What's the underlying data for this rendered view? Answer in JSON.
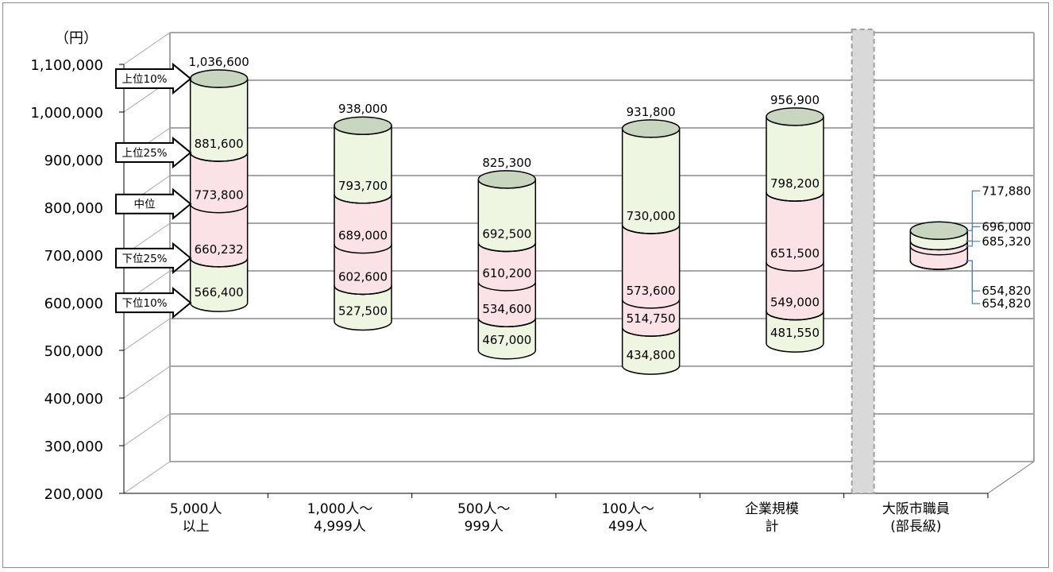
{
  "chart_data": {
    "type": "bar",
    "subtype": "3d-cylinder-floating-percentile",
    "unit_label": "（円）",
    "ylim": [
      200000,
      1100000
    ],
    "yticks": [
      "200,000",
      "300,000",
      "400,000",
      "500,000",
      "600,000",
      "700,000",
      "800,000",
      "900,000",
      "1,000,000",
      "1,100,000"
    ],
    "ytick_values": [
      200000,
      300000,
      400000,
      500000,
      600000,
      700000,
      800000,
      900000,
      1000000,
      1100000
    ],
    "grid": true,
    "categories": [
      {
        "label": [
          "5,000人",
          "以上"
        ]
      },
      {
        "label": [
          "1,000人～",
          "4,999人"
        ]
      },
      {
        "label": [
          "500人～",
          "999人"
        ]
      },
      {
        "label": [
          "100人～",
          "499人"
        ]
      },
      {
        "label": [
          "企業規模",
          "計"
        ]
      },
      {
        "label": [
          "大阪市職員",
          "(部長級)"
        ]
      }
    ],
    "percentile_markers": [
      "上位10%",
      "上位25%",
      "中位",
      "下位25%",
      "下位10%"
    ],
    "series": [
      {
        "name": "上位10%",
        "values": [
          1036600,
          938000,
          825300,
          931800,
          956900,
          717880
        ],
        "labels": [
          "1,036,600",
          "938,000",
          "825,300",
          "931,800",
          "956,900",
          "717,880"
        ]
      },
      {
        "name": "上位25%",
        "values": [
          881600,
          793700,
          692500,
          730000,
          798200,
          696000
        ],
        "labels": [
          "881,600",
          "793,700",
          "692,500",
          "730,000",
          "798,200",
          "696,000"
        ]
      },
      {
        "name": "中位",
        "values": [
          773800,
          689000,
          610200,
          573600,
          651500,
          685320
        ],
        "labels": [
          "773,800",
          "689,000",
          "610,200",
          "573,600",
          "651,500",
          "685,320"
        ]
      },
      {
        "name": "下位25%",
        "values": [
          660232,
          602600,
          534600,
          514750,
          549000,
          654820
        ],
        "labels": [
          "660,232",
          "602,600",
          "534,600",
          "514,750",
          "549,000",
          "654,820"
        ]
      },
      {
        "name": "下位10%",
        "values": [
          566400,
          527500,
          467000,
          434800,
          481550,
          654820
        ],
        "labels": [
          "566,400",
          "527,500",
          "467,000",
          "434,800",
          "481,550",
          "654,820"
        ]
      }
    ],
    "colors": {
      "outer_band": "#eef5e0",
      "inner_band": "#fbe2e6",
      "top_cap": "#c8d6c0",
      "leader_line": "#4a7ebb",
      "separator_column": "#d9d9d9",
      "grid": "#a6a6a6"
    }
  }
}
